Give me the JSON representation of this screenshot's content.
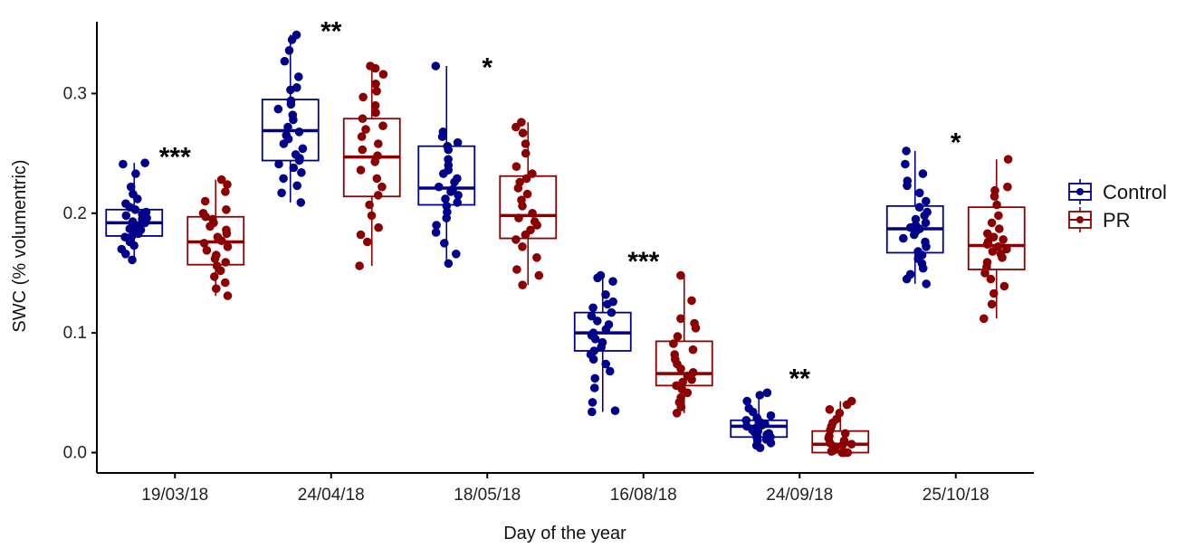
{
  "chart_data": {
    "type": "box",
    "xlabel": "Day of the year",
    "ylabel": "SWC (% volumentric)",
    "ylim": [
      -0.017,
      0.36
    ],
    "yticks": [
      "0.0",
      "0.1",
      "0.2",
      "0.3"
    ],
    "grid": false,
    "legend_position": "right",
    "categories": [
      "19/03/18",
      "24/04/18",
      "18/05/18",
      "16/08/18",
      "24/09/18",
      "25/10/18"
    ],
    "series": [
      {
        "name": "Control",
        "color": "#00008B",
        "boxes": [
          {
            "min": 0.161,
            "q1": 0.181,
            "median": 0.192,
            "q3": 0.203,
            "max": 0.242
          },
          {
            "min": 0.209,
            "q1": 0.244,
            "median": 0.269,
            "q3": 0.295,
            "max": 0.349
          },
          {
            "min": 0.158,
            "q1": 0.207,
            "median": 0.221,
            "q3": 0.256,
            "max": 0.323
          },
          {
            "min": 0.034,
            "q1": 0.085,
            "median": 0.1,
            "q3": 0.117,
            "max": 0.148
          },
          {
            "min": 0.004,
            "q1": 0.013,
            "median": 0.022,
            "q3": 0.027,
            "max": 0.05
          },
          {
            "min": 0.141,
            "q1": 0.167,
            "median": 0.187,
            "q3": 0.206,
            "max": 0.252
          }
        ],
        "points": [
          [
            0.242,
            0.241,
            0.233,
            0.222,
            0.216,
            0.212,
            0.208,
            0.205,
            0.203,
            0.201,
            0.199,
            0.198,
            0.196,
            0.195,
            0.193,
            0.192,
            0.19,
            0.189,
            0.187,
            0.186,
            0.185,
            0.183,
            0.181,
            0.18,
            0.176,
            0.173,
            0.17,
            0.166,
            0.161
          ],
          [
            0.349,
            0.345,
            0.336,
            0.327,
            0.314,
            0.305,
            0.303,
            0.294,
            0.291,
            0.287,
            0.282,
            0.278,
            0.272,
            0.268,
            0.265,
            0.262,
            0.258,
            0.254,
            0.249,
            0.246,
            0.244,
            0.241,
            0.238,
            0.234,
            0.229,
            0.223,
            0.217,
            0.209
          ],
          [
            0.323,
            0.268,
            0.264,
            0.259,
            0.256,
            0.253,
            0.245,
            0.24,
            0.236,
            0.233,
            0.229,
            0.226,
            0.222,
            0.22,
            0.218,
            0.215,
            0.212,
            0.209,
            0.206,
            0.201,
            0.196,
            0.19,
            0.184,
            0.175,
            0.166,
            0.158
          ],
          [
            0.148,
            0.146,
            0.143,
            0.132,
            0.126,
            0.124,
            0.121,
            0.117,
            0.114,
            0.11,
            0.107,
            0.103,
            0.1,
            0.098,
            0.095,
            0.092,
            0.088,
            0.085,
            0.082,
            0.078,
            0.074,
            0.068,
            0.062,
            0.054,
            0.042,
            0.035,
            0.034
          ],
          [
            0.05,
            0.048,
            0.043,
            0.037,
            0.034,
            0.031,
            0.029,
            0.027,
            0.026,
            0.025,
            0.024,
            0.023,
            0.022,
            0.021,
            0.02,
            0.019,
            0.018,
            0.017,
            0.016,
            0.015,
            0.014,
            0.013,
            0.012,
            0.011,
            0.01,
            0.008,
            0.006,
            0.004
          ],
          [
            0.252,
            0.241,
            0.233,
            0.227,
            0.223,
            0.217,
            0.21,
            0.205,
            0.201,
            0.198,
            0.195,
            0.192,
            0.19,
            0.188,
            0.187,
            0.185,
            0.182,
            0.179,
            0.176,
            0.172,
            0.168,
            0.165,
            0.162,
            0.158,
            0.154,
            0.149,
            0.145,
            0.141
          ]
        ]
      },
      {
        "name": "PR",
        "color": "#8B0000",
        "boxes": [
          {
            "min": 0.131,
            "q1": 0.157,
            "median": 0.176,
            "q3": 0.197,
            "max": 0.228
          },
          {
            "min": 0.156,
            "q1": 0.214,
            "median": 0.247,
            "q3": 0.279,
            "max": 0.323
          },
          {
            "min": 0.14,
            "q1": 0.179,
            "median": 0.198,
            "q3": 0.231,
            "max": 0.276
          },
          {
            "min": 0.033,
            "q1": 0.056,
            "median": 0.066,
            "q3": 0.093,
            "max": 0.148
          },
          {
            "min": 0.0,
            "q1": 0.0,
            "median": 0.007,
            "q3": 0.018,
            "max": 0.043
          },
          {
            "min": 0.112,
            "q1": 0.153,
            "median": 0.173,
            "q3": 0.205,
            "max": 0.245
          }
        ],
        "points": [
          [
            0.228,
            0.224,
            0.218,
            0.21,
            0.203,
            0.2,
            0.197,
            0.195,
            0.192,
            0.189,
            0.186,
            0.183,
            0.18,
            0.177,
            0.175,
            0.172,
            0.169,
            0.165,
            0.162,
            0.159,
            0.156,
            0.152,
            0.147,
            0.142,
            0.137,
            0.131
          ],
          [
            0.323,
            0.321,
            0.316,
            0.308,
            0.302,
            0.297,
            0.29,
            0.284,
            0.279,
            0.273,
            0.27,
            0.264,
            0.258,
            0.253,
            0.248,
            0.243,
            0.236,
            0.229,
            0.222,
            0.215,
            0.207,
            0.198,
            0.188,
            0.182,
            0.176,
            0.156
          ],
          [
            0.276,
            0.272,
            0.267,
            0.258,
            0.25,
            0.239,
            0.233,
            0.229,
            0.226,
            0.221,
            0.216,
            0.211,
            0.206,
            0.2,
            0.196,
            0.193,
            0.19,
            0.186,
            0.182,
            0.178,
            0.172,
            0.163,
            0.153,
            0.148,
            0.14
          ],
          [
            0.148,
            0.127,
            0.112,
            0.108,
            0.104,
            0.097,
            0.091,
            0.086,
            0.082,
            0.078,
            0.074,
            0.07,
            0.067,
            0.064,
            0.061,
            0.059,
            0.056,
            0.053,
            0.05,
            0.046,
            0.042,
            0.038,
            0.033
          ],
          [
            0.043,
            0.04,
            0.036,
            0.033,
            0.028,
            0.025,
            0.022,
            0.019,
            0.016,
            0.014,
            0.012,
            0.01,
            0.008,
            0.007,
            0.006,
            0.005,
            0.004,
            0.003,
            0.002,
            0.001,
            0.0,
            0.0,
            0.0,
            0.0,
            0.0,
            0.0
          ],
          [
            0.245,
            0.222,
            0.219,
            0.214,
            0.207,
            0.198,
            0.192,
            0.187,
            0.183,
            0.18,
            0.178,
            0.176,
            0.174,
            0.172,
            0.17,
            0.168,
            0.166,
            0.163,
            0.159,
            0.155,
            0.15,
            0.145,
            0.139,
            0.133,
            0.124,
            0.112
          ]
        ]
      }
    ],
    "annotations": [
      {
        "category": "19/03/18",
        "text": "***",
        "y": 0.25
      },
      {
        "category": "24/04/18",
        "text": "**",
        "y": 0.355
      },
      {
        "category": "18/05/18",
        "text": "*",
        "y": 0.325
      },
      {
        "category": "16/08/18",
        "text": "***",
        "y": 0.163
      },
      {
        "category": "24/09/18",
        "text": "**",
        "y": 0.065
      },
      {
        "category": "25/10/18",
        "text": "*",
        "y": 0.262
      }
    ]
  }
}
